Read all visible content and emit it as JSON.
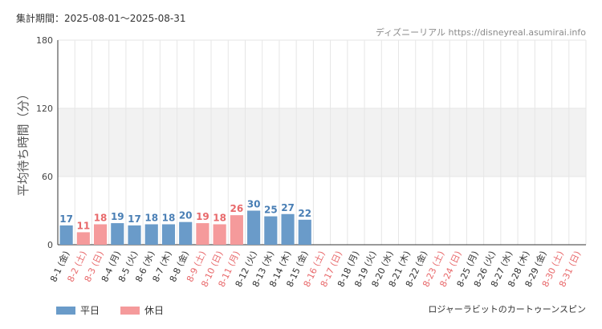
{
  "header": {
    "period": "集計期間：2025-08-01〜2025-08-31",
    "source": "ディズニーリアル https://disneyreal.asumirai.info"
  },
  "footer": {
    "attraction": "ロジャーラビットのカートゥーンスピン"
  },
  "legend": {
    "weekday_label": "平日",
    "holiday_label": "休日"
  },
  "colors": {
    "weekday": "#6a9bc9",
    "holiday": "#f59a9b",
    "weekday_text": "#4a7fb5",
    "holiday_text": "#e8696b",
    "band": "#f2f2f2",
    "grid": "#e6e6e6"
  },
  "chart_data": {
    "type": "bar",
    "ylabel": "平均待ち時間（分）",
    "ylim": [
      0,
      180
    ],
    "yticks": [
      0,
      60,
      120,
      180
    ],
    "band": [
      60,
      120
    ],
    "categories": [
      "8-1 (金)",
      "8-2 (土)",
      "8-3 (日)",
      "8-4 (月)",
      "8-5 (火)",
      "8-6 (水)",
      "8-7 (木)",
      "8-8 (金)",
      "8-9 (土)",
      "8-10 (日)",
      "8-11 (月)",
      "8-12 (火)",
      "8-13 (水)",
      "8-14 (木)",
      "8-15 (金)",
      "8-16 (土)",
      "8-17 (日)",
      "8-18 (月)",
      "8-19 (火)",
      "8-20 (水)",
      "8-21 (木)",
      "8-22 (金)",
      "8-23 (土)",
      "8-24 (日)",
      "8-25 (月)",
      "8-26 (火)",
      "8-27 (水)",
      "8-28 (木)",
      "8-29 (金)",
      "8-30 (土)",
      "8-31 (日)"
    ],
    "holiday": [
      false,
      true,
      true,
      false,
      false,
      false,
      false,
      false,
      true,
      true,
      true,
      false,
      false,
      false,
      false,
      true,
      true,
      false,
      false,
      false,
      false,
      false,
      true,
      true,
      false,
      false,
      false,
      false,
      false,
      true,
      true
    ],
    "values": [
      17,
      11,
      18,
      19,
      17,
      18,
      18,
      20,
      19,
      18,
      26,
      30,
      25,
      27,
      22,
      null,
      null,
      null,
      null,
      null,
      null,
      null,
      null,
      null,
      null,
      null,
      null,
      null,
      null,
      null,
      null
    ]
  }
}
